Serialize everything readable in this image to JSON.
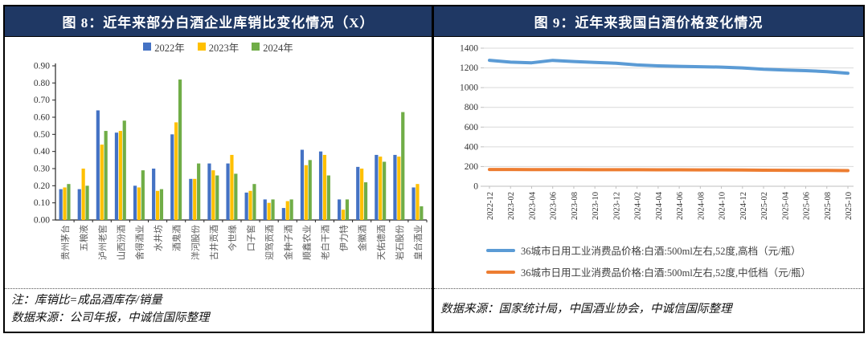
{
  "panels": {
    "left": {
      "header": "图 8：近年来部分白酒企业库销比变化情况（X）",
      "header_bg": "#1F3864",
      "header_text_color": "#FFFFFF",
      "notes": [
        "注：库销比=成品酒库存/销量",
        "数据来源：公司年报，中诚信国际整理"
      ]
    },
    "right": {
      "header": "图 9：近年来我国白酒价格变化情况",
      "header_bg": "#1F3864",
      "header_text_color": "#FFFFFF",
      "notes": [
        "数据来源：国家统计局，中国酒业协会，中诚信国际整理"
      ]
    }
  },
  "chart_data": [
    {
      "type": "bar",
      "panel": "left",
      "title": "图 8：近年来部分白酒企业库销比变化情况（X）",
      "categories": [
        "贵州茅台",
        "五粮液",
        "泸州老窖",
        "山西汾酒",
        "舍得酒业",
        "水井坊",
        "酒鬼酒",
        "洋河股份",
        "古井贡酒",
        "今世缘",
        "口子窖",
        "迎驾贡酒",
        "金种子酒",
        "顺鑫农业",
        "老白干酒",
        "伊力特",
        "金徽酒",
        "天佑德酒",
        "岩石股份",
        "皇台酒业"
      ],
      "series": [
        {
          "name": "2022年",
          "color": "#4472C4",
          "values": [
            0.18,
            0.18,
            0.64,
            0.51,
            0.2,
            0.3,
            0.5,
            0.24,
            0.33,
            0.33,
            0.16,
            0.12,
            0.07,
            0.41,
            0.4,
            0.12,
            0.31,
            0.38,
            0.38,
            0.19
          ]
        },
        {
          "name": "2023年",
          "color": "#FFC000",
          "values": [
            0.19,
            0.3,
            0.44,
            0.52,
            0.19,
            0.17,
            0.57,
            0.24,
            0.29,
            0.38,
            0.17,
            0.1,
            0.11,
            0.32,
            0.38,
            0.06,
            0.3,
            0.37,
            0.37,
            0.21
          ]
        },
        {
          "name": "2024年",
          "color": "#70AD47",
          "values": [
            0.21,
            0.2,
            0.52,
            0.58,
            0.29,
            0.18,
            0.82,
            0.33,
            0.26,
            0.27,
            0.21,
            0.12,
            0.12,
            0.35,
            0.26,
            0.12,
            0.22,
            0.34,
            0.63,
            0.08
          ]
        }
      ],
      "ylim": [
        0,
        0.9
      ],
      "ytick_step": 0.1,
      "ytick_labels": [
        "0.00",
        "0.10",
        "0.20",
        "0.30",
        "0.40",
        "0.50",
        "0.60",
        "0.70",
        "0.80",
        "0.90"
      ],
      "grid": false,
      "legend_position": "top"
    },
    {
      "type": "line",
      "panel": "right",
      "title": "图 9：近年来我国白酒价格变化情况",
      "x": [
        "2022-12",
        "2023-02",
        "2023-04",
        "2023-06",
        "2023-08",
        "2023-10",
        "2023-12",
        "2024-02",
        "2024-04",
        "2024-06",
        "2024-08",
        "2024-10",
        "2024-12",
        "2025-02",
        "2025-04",
        "2025-06",
        "2025-08",
        "2025-10"
      ],
      "series": [
        {
          "name": "36城市日用工业消费品价格:白酒:500ml左右,52度,高档（元/瓶）",
          "color": "#5B9BD5",
          "values": [
            1277,
            1258,
            1252,
            1276,
            1265,
            1255,
            1247,
            1230,
            1221,
            1216,
            1212,
            1208,
            1200,
            1186,
            1178,
            1172,
            1162,
            1146
          ]
        },
        {
          "name": "36城市日用工业消费品价格:白酒:500ml左右,52度,中低档（元/瓶）",
          "color": "#ED7D31",
          "values": [
            170,
            170,
            169,
            169,
            169,
            168,
            168,
            168,
            167,
            167,
            166,
            166,
            165,
            163,
            162,
            161,
            160,
            159
          ]
        }
      ],
      "ylim": [
        0,
        1400
      ],
      "ytick_step": 200,
      "ytick_labels": [
        "0",
        "200",
        "400",
        "600",
        "800",
        "1000",
        "1200",
        "1400"
      ],
      "grid": true,
      "legend_position": "bottom"
    }
  ]
}
